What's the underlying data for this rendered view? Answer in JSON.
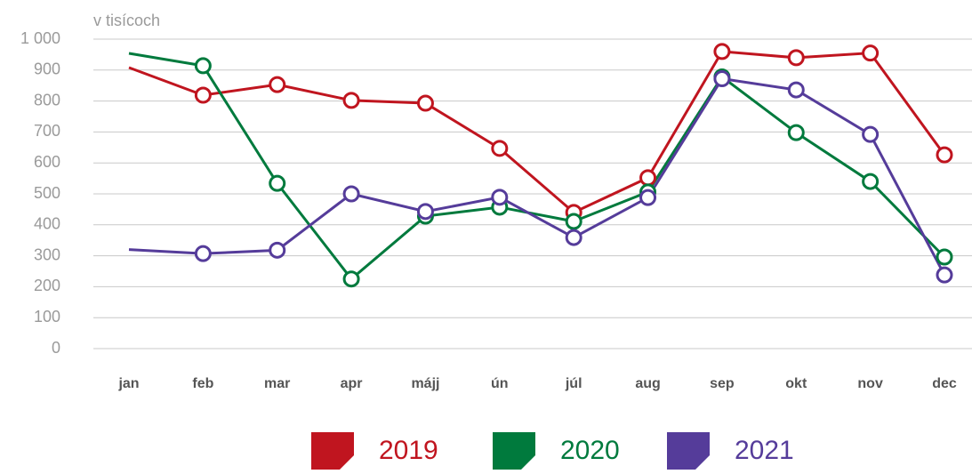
{
  "chart_data": {
    "type": "line",
    "y_label": "v tisícoch",
    "categories": [
      "jan",
      "feb",
      "mar",
      "apr",
      "májj",
      "ún",
      "júl",
      "aug",
      "sep",
      "okt",
      "nov",
      "dec"
    ],
    "series": [
      {
        "name": "2019",
        "color": "#c0151f",
        "values": [
          908,
          819,
          853,
          802,
          793,
          647,
          440,
          552,
          960,
          940,
          955,
          626
        ]
      },
      {
        "name": "2020",
        "color": "#007a3d",
        "values": [
          954,
          914,
          534,
          225,
          428,
          457,
          411,
          506,
          878,
          698,
          540,
          296
        ]
      },
      {
        "name": "2021",
        "color": "#553c9a",
        "values": [
          320,
          307,
          318,
          500,
          443,
          489,
          359,
          488,
          872,
          836,
          692,
          238
        ]
      }
    ],
    "ylim": [
      0,
      1000
    ],
    "yticks": [
      0,
      100,
      200,
      300,
      400,
      500,
      600,
      700,
      800,
      900,
      {
        "value": 1000,
        "label": "1 000"
      }
    ],
    "grid": true,
    "legend": "bottom"
  }
}
